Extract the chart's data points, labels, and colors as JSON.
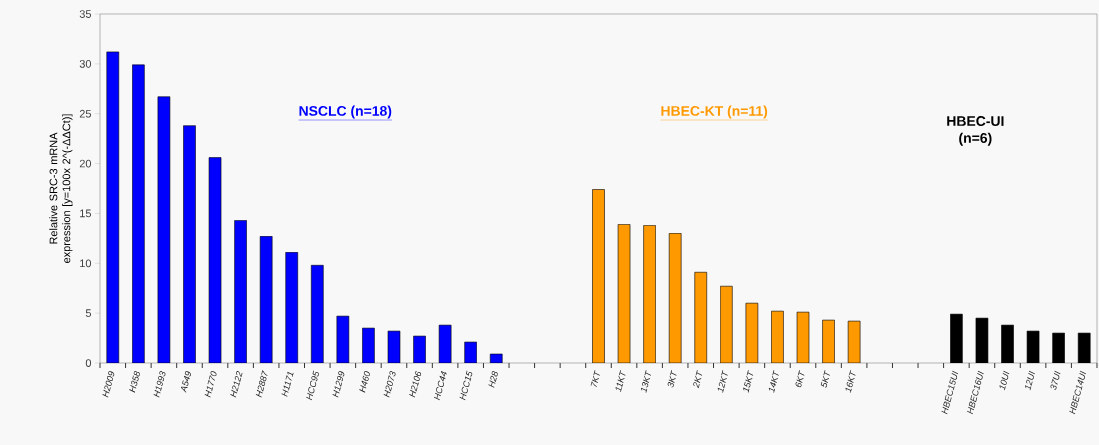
{
  "chart_data": {
    "type": "bar",
    "ylabel": "Relative SRC-3 mRNA expression [y=100x 2^(-ΔΔCt)]",
    "annotations": [
      "NSCLC (n=18)",
      "HBEC-KT (n=11)",
      "HBEC-UI (n=6)"
    ],
    "categories": [
      "H2009",
      "H358",
      "H1993",
      "A549",
      "H1770",
      "H2122",
      "H2887",
      "H1171",
      "HCC95",
      "H1299",
      "H460",
      "H2073",
      "H2106",
      "HCC44",
      "HCC15",
      "H28",
      null,
      null,
      null,
      "7KT",
      "11KT",
      "13KT",
      "3KT",
      "2KT",
      "12KT",
      "15KT",
      "14KT",
      "6KT",
      "5KT",
      "16KT",
      null,
      null,
      null,
      "HBEC15UI",
      "HBEC16UI",
      "10UI",
      "12UI",
      "37UI",
      "HBEC14UI"
    ],
    "values": [
      31.2,
      29.9,
      26.7,
      23.8,
      20.6,
      14.3,
      12.7,
      11.1,
      9.8,
      4.7,
      3.5,
      3.2,
      2.7,
      3.8,
      2.1,
      0.9,
      null,
      null,
      null,
      17.4,
      13.9,
      13.8,
      13.0,
      9.1,
      7.7,
      6.0,
      5.2,
      5.1,
      4.3,
      4.2,
      null,
      null,
      null,
      4.9,
      4.5,
      3.8,
      3.2,
      3.0,
      3.0
    ],
    "colors": [
      "#0000ff",
      "#0000ff",
      "#0000ff",
      "#0000ff",
      "#0000ff",
      "#0000ff",
      "#0000ff",
      "#0000ff",
      "#0000ff",
      "#0000ff",
      "#0000ff",
      "#0000ff",
      "#0000ff",
      "#0000ff",
      "#0000ff",
      "#0000ff",
      null,
      null,
      null,
      "#ff9900",
      "#ff9900",
      "#ff9900",
      "#ff9900",
      "#ff9900",
      "#ff9900",
      "#ff9900",
      "#ff9900",
      "#ff9900",
      "#ff9900",
      "#ff9900",
      null,
      null,
      null,
      "#000000",
      "#000000",
      "#000000",
      "#000000",
      "#000000",
      "#000000"
    ],
    "ylim": [
      0,
      35
    ],
    "yticks": [
      0,
      5,
      10,
      15,
      20,
      25,
      30,
      35
    ],
    "grid": false
  }
}
